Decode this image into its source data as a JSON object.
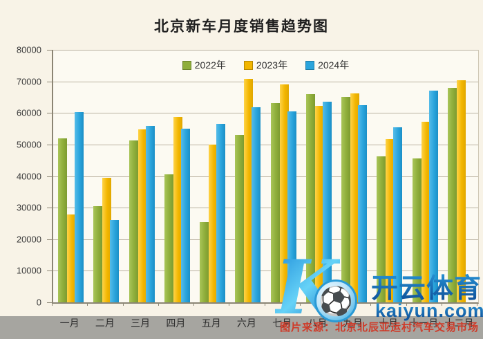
{
  "title": "北京新车月度销售趋势图",
  "chart_data": {
    "type": "bar",
    "categories": [
      "一月",
      "二月",
      "三月",
      "四月",
      "五月",
      "六月",
      "七月",
      "八月",
      "九月",
      "十月",
      "十一月",
      "十二月"
    ],
    "series": [
      {
        "name": "2022年",
        "color": "#8fae3b",
        "values": [
          52000,
          30400,
          51300,
          40600,
          25500,
          53000,
          63200,
          66000,
          65000,
          46300,
          45700,
          68000
        ]
      },
      {
        "name": "2023年",
        "color": "#f2b600",
        "values": [
          27800,
          39400,
          54800,
          58800,
          50000,
          70700,
          69000,
          62200,
          66100,
          51800,
          57200,
          70400
        ]
      },
      {
        "name": "2024年",
        "color": "#2aa4dc",
        "values": [
          60300,
          26000,
          56000,
          55100,
          56500,
          61800,
          60400,
          63500,
          62400,
          55500,
          67000,
          null
        ]
      }
    ],
    "title": "北京新车月度销售趋势图",
    "xlabel": "",
    "ylabel": "",
    "ylim": [
      0,
      80000
    ],
    "ytick_step": 10000,
    "grid": true,
    "legend_position": "top-center-inside"
  },
  "watermark": {
    "logo_letter": "K",
    "soccer_icon": "⚽",
    "brand_cn": "开云体育",
    "brand_url": "kaiyun.com",
    "accent_color": "#1b7ec9"
  },
  "caption": {
    "text": "图片来源：北京北辰亚运村汽车交易市场",
    "color": "#cf3a28"
  },
  "colors": {
    "page_background": "#f8f3e7",
    "plot_background": "#fcfaf2",
    "gridline": "#b9b1a0",
    "axis": "#8b8574",
    "strip_gray": "#a6a5a0",
    "title_text": "#1f1f1f"
  }
}
